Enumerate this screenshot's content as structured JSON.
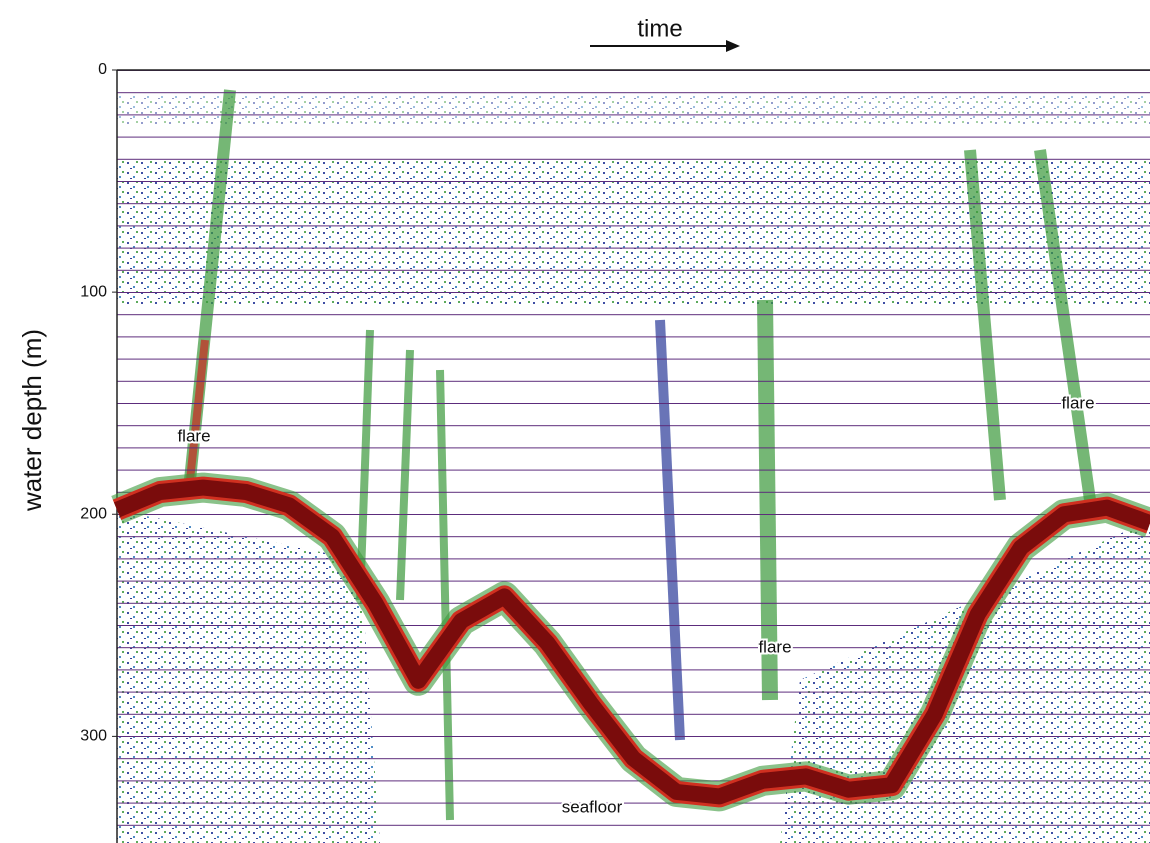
{
  "chart_data": {
    "type": "line",
    "title": "time",
    "y_label": "water depth (m)",
    "ylim": [
      0,
      348
    ],
    "y_inverted": true,
    "yticks": [
      0,
      100,
      200,
      300
    ],
    "categories": [
      null,
      null,
      null,
      null,
      null,
      null,
      null,
      null,
      null,
      null,
      null,
      null,
      null,
      null,
      null,
      null,
      null,
      null,
      null,
      null,
      null,
      null,
      null,
      null,
      null
    ],
    "values": [
      198,
      190,
      188,
      190,
      196,
      210,
      240,
      275,
      248,
      237,
      258,
      285,
      310,
      325,
      327,
      320,
      318,
      324,
      322,
      290,
      245,
      215,
      200,
      197,
      204
    ],
    "color": "#7a0c0c",
    "annotations": [
      "flare",
      "flare",
      "flare",
      "seafloor"
    ]
  }
}
